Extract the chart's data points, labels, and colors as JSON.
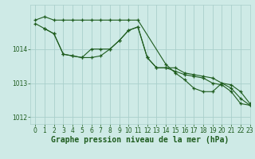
{
  "title": "Graphe pression niveau de la mer (hPa)",
  "bg_color": "#ceeae6",
  "grid_color": "#aacfcb",
  "line_color": "#1e5c1e",
  "text_color": "#1e5c1e",
  "xlim": [
    -0.5,
    23
  ],
  "ylim": [
    1011.8,
    1015.3
  ],
  "yticks": [
    1012,
    1013,
    1014
  ],
  "xticks": [
    0,
    1,
    2,
    3,
    4,
    5,
    6,
    7,
    8,
    9,
    10,
    11,
    12,
    13,
    14,
    15,
    16,
    17,
    18,
    19,
    20,
    21,
    22,
    23
  ],
  "series1_x": [
    0,
    1,
    2,
    3,
    4,
    5,
    6,
    7,
    8,
    9,
    10,
    11,
    14,
    15,
    16,
    17,
    18,
    19,
    20,
    21,
    22,
    23
  ],
  "series1_y": [
    1014.85,
    1014.95,
    1014.85,
    1014.85,
    1014.85,
    1014.85,
    1014.85,
    1014.85,
    1014.85,
    1014.85,
    1014.85,
    1014.85,
    1013.55,
    1013.3,
    1013.1,
    1012.85,
    1012.75,
    1012.75,
    1013.0,
    1012.85,
    1012.55,
    1012.35
  ],
  "series2_x": [
    1,
    2,
    3,
    4,
    5,
    6,
    7,
    8,
    9,
    10,
    11,
    12,
    13,
    14,
    15,
    16,
    17,
    18,
    19,
    20,
    21,
    22,
    23
  ],
  "series2_y": [
    1014.6,
    1014.45,
    1013.85,
    1013.8,
    1013.75,
    1014.0,
    1014.0,
    1014.0,
    1014.25,
    1014.55,
    1014.65,
    1013.75,
    1013.45,
    1013.45,
    1013.45,
    1013.3,
    1013.25,
    1013.2,
    1013.15,
    1013.0,
    1012.95,
    1012.75,
    1012.4
  ],
  "series3_x": [
    0,
    1,
    2,
    3,
    4,
    5,
    6,
    7,
    8,
    9,
    10,
    11,
    12,
    13,
    14,
    15,
    16,
    17,
    18,
    19,
    20,
    21,
    22,
    23
  ],
  "series3_y": [
    1014.75,
    1014.6,
    1014.45,
    1013.85,
    1013.8,
    1013.75,
    1013.75,
    1013.8,
    1014.0,
    1014.25,
    1014.55,
    1014.65,
    1013.75,
    1013.45,
    1013.45,
    1013.35,
    1013.25,
    1013.2,
    1013.15,
    1013.0,
    1012.95,
    1012.75,
    1012.4,
    1012.35
  ],
  "label_fontsize": 7,
  "tick_fontsize": 5.5
}
